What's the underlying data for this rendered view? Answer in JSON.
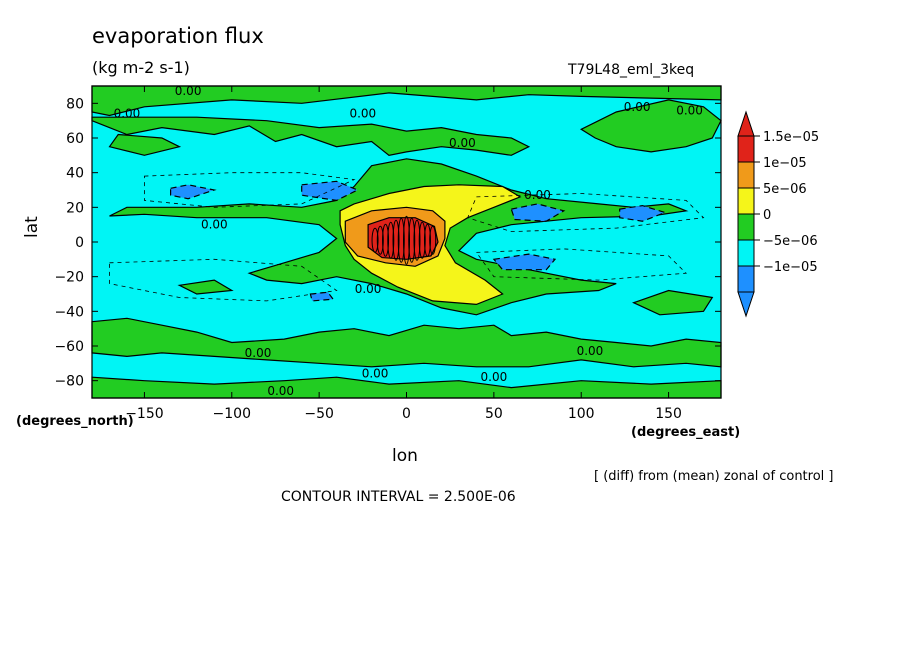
{
  "chart_data": {
    "type": "heatmap",
    "title": "evaporation flux",
    "units": "(kg m-2 s-1)",
    "run_label": "T79L48_eml_3keq",
    "xlabel": "lon",
    "ylabel": "lat",
    "x_units": "(degrees_east)",
    "y_units": "(degrees_north)",
    "xlim": [
      -180,
      180
    ],
    "ylim": [
      -90,
      90
    ],
    "x_ticks": [
      -150,
      -100,
      -50,
      0,
      50,
      100,
      150
    ],
    "y_ticks": [
      80,
      60,
      40,
      20,
      0,
      -20,
      -40,
      -60,
      -80
    ],
    "x_tick_labels": [
      "−150",
      "−100",
      "−50",
      "0",
      "50",
      "100",
      "150"
    ],
    "y_tick_labels": [
      "80",
      "60",
      "40",
      "20",
      "0",
      "−20",
      "−40",
      "−60",
      "−80"
    ],
    "colorbar": {
      "labels": [
        "1.5e−05",
        "1e−05",
        "5e−06",
        "0",
        "−5e−06",
        "−1e−05"
      ],
      "colors": [
        "#e0231a",
        "#f09a1a",
        "#f5f51a",
        "#22cc22",
        "#00f5f5",
        "#1e90ff"
      ],
      "arrow_top_color": "#e0231a",
      "arrow_bottom_color": "#1e90ff"
    },
    "background_color": "#00f5f5",
    "contour_interval": "CONTOUR INTERVAL = 2.500E-06",
    "note": "[ (diff) from (mean) zonal of control ]",
    "contour_labels": [
      {
        "text": "0.00",
        "lon": -125,
        "lat": 87
      },
      {
        "text": "0.00",
        "lon": -160,
        "lat": 74
      },
      {
        "text": "0.00",
        "lon": -25,
        "lat": 74
      },
      {
        "text": "0.00",
        "lon": 132,
        "lat": 78
      },
      {
        "text": "0.00",
        "lon": 162,
        "lat": 76
      },
      {
        "text": "0.00",
        "lon": 32,
        "lat": 57
      },
      {
        "text": "0.00",
        "lon": 75,
        "lat": 27
      },
      {
        "text": "0.00",
        "lon": -110,
        "lat": 10
      },
      {
        "text": "0.00",
        "lon": -22,
        "lat": -27
      },
      {
        "text": "0.00",
        "lon": -85,
        "lat": -64
      },
      {
        "text": "0.00",
        "lon": -18,
        "lat": -76
      },
      {
        "text": "0.00",
        "lon": 105,
        "lat": -63
      },
      {
        "text": "0.00",
        "lon": 50,
        "lat": -78
      },
      {
        "text": "0.00",
        "lon": -72,
        "lat": -86
      }
    ]
  }
}
